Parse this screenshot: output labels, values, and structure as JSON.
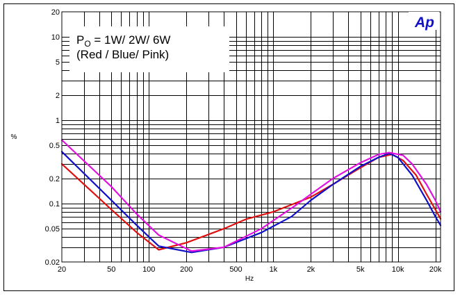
{
  "chart_data": {
    "type": "line",
    "xlabel": "Hz",
    "ylabel": "%",
    "xscale": "log",
    "yscale": "log",
    "xlim": [
      20,
      22000
    ],
    "ylim": [
      0.02,
      20
    ],
    "grid": true,
    "x_ticks": [
      {
        "value": 20,
        "label": "20"
      },
      {
        "value": 50,
        "label": "50"
      },
      {
        "value": 100,
        "label": "100"
      },
      {
        "value": 200,
        "label": "200"
      },
      {
        "value": 500,
        "label": "500"
      },
      {
        "value": 1000,
        "label": "1k"
      },
      {
        "value": 2000,
        "label": "2k"
      },
      {
        "value": 5000,
        "label": "5k"
      },
      {
        "value": 10000,
        "label": "10k"
      },
      {
        "value": 20000,
        "label": "20k"
      }
    ],
    "y_ticks": [
      {
        "value": 20,
        "label": "20"
      },
      {
        "value": 10,
        "label": "10"
      },
      {
        "value": 5,
        "label": "5"
      },
      {
        "value": 2,
        "label": "2"
      },
      {
        "value": 1,
        "label": "1"
      },
      {
        "value": 0.5,
        "label": "0.5"
      },
      {
        "value": 0.2,
        "label": "0.2"
      },
      {
        "value": 0.1,
        "label": "0.1"
      },
      {
        "value": 0.05,
        "label": "0.05"
      },
      {
        "value": 0.02,
        "label": "0.02"
      }
    ],
    "legend_text": {
      "line1_prefix": "P",
      "line1_sub": "O",
      "line1_rest": " = 1W/ 2W/ 6W",
      "line2": "(Red / Blue/ Pink)"
    },
    "logo": "Ap",
    "series": [
      {
        "color": "#e01010",
        "points": [
          [
            20,
            0.3
          ],
          [
            50,
            0.085
          ],
          [
            80,
            0.045
          ],
          [
            120,
            0.028
          ],
          [
            200,
            0.034
          ],
          [
            400,
            0.05
          ],
          [
            600,
            0.065
          ],
          [
            1000,
            0.08
          ],
          [
            2000,
            0.12
          ],
          [
            3000,
            0.17
          ],
          [
            5000,
            0.27
          ],
          [
            7000,
            0.36
          ],
          [
            9000,
            0.39
          ],
          [
            11000,
            0.33
          ],
          [
            14000,
            0.22
          ],
          [
            17000,
            0.13
          ],
          [
            20000,
            0.085
          ],
          [
            22000,
            0.066
          ]
        ]
      },
      {
        "color": "#1010c8",
        "points": [
          [
            20,
            0.42
          ],
          [
            50,
            0.11
          ],
          [
            80,
            0.055
          ],
          [
            120,
            0.031
          ],
          [
            220,
            0.026
          ],
          [
            400,
            0.03
          ],
          [
            800,
            0.045
          ],
          [
            1400,
            0.07
          ],
          [
            2000,
            0.11
          ],
          [
            3000,
            0.17
          ],
          [
            5000,
            0.28
          ],
          [
            7000,
            0.36
          ],
          [
            8500,
            0.4
          ],
          [
            10000,
            0.36
          ],
          [
            13000,
            0.22
          ],
          [
            17000,
            0.11
          ],
          [
            20000,
            0.07
          ],
          [
            22000,
            0.055
          ]
        ]
      },
      {
        "color": "#e010e0",
        "points": [
          [
            20,
            0.58
          ],
          [
            50,
            0.16
          ],
          [
            80,
            0.075
          ],
          [
            120,
            0.042
          ],
          [
            220,
            0.027
          ],
          [
            400,
            0.03
          ],
          [
            800,
            0.05
          ],
          [
            1500,
            0.095
          ],
          [
            2000,
            0.13
          ],
          [
            3000,
            0.2
          ],
          [
            5000,
            0.31
          ],
          [
            7000,
            0.39
          ],
          [
            8500,
            0.41
          ],
          [
            11000,
            0.38
          ],
          [
            13000,
            0.3
          ],
          [
            17000,
            0.17
          ],
          [
            20000,
            0.11
          ],
          [
            22000,
            0.08
          ]
        ]
      }
    ]
  }
}
